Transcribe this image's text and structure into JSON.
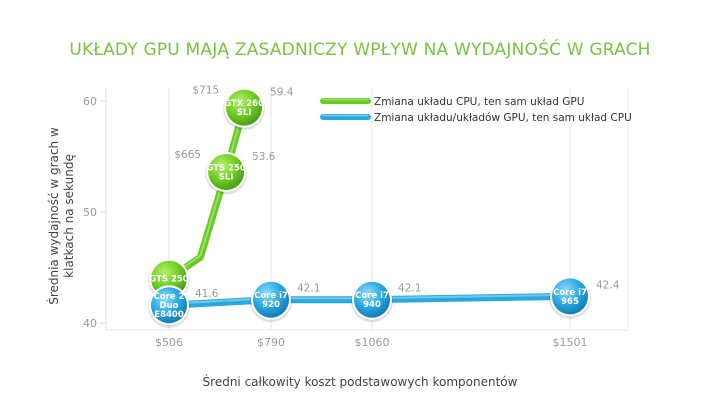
{
  "chart_data": {
    "type": "line",
    "title": "UKŁADY GPU MAJĄ ZASADNICZY WPŁYW NA WYDAJNOŚĆ W GRACH",
    "xlabel": "Średni całkowity koszt podstawowych komponentów",
    "ylabel": "Średnia wydajność w grach w klatkach na sekundę",
    "ylabel_lines": [
      "Średnia wydajność w grach w",
      "klatkach na sekundę"
    ],
    "y_ticks": [
      "60",
      "50",
      "40"
    ],
    "y_tick_values": [
      60,
      50,
      40
    ],
    "ylim": [
      40,
      60
    ],
    "x_ticks": [
      "$506",
      "$790",
      "$1060",
      "$1501"
    ],
    "x_tick_values": [
      506,
      790,
      1060,
      1501
    ],
    "legend_position": "top-right",
    "series": [
      {
        "name": "Zmiana układu CPU, ten sam układ GPU",
        "color": "#66cc22",
        "points": [
          {
            "x": 506,
            "y": 44.0,
            "node_label": [
              "GTS 250"
            ],
            "price_label": "",
            "value_label": ""
          },
          {
            "x": 665,
            "y": 53.6,
            "node_label": [
              "GTS 250",
              "SLI"
            ],
            "price_label": "$665",
            "value_label": "53.6"
          },
          {
            "x": 715,
            "y": 59.4,
            "node_label": [
              "GTX 260",
              "SLI"
            ],
            "price_label": "$715",
            "value_label": "59.4"
          }
        ]
      },
      {
        "name": "Zmiana układu/układów GPU, ten sam układ CPU",
        "color": "#29a8df",
        "points": [
          {
            "x": 506,
            "y": 41.6,
            "node_label": [
              "Core 2",
              "Duo",
              "E8400"
            ],
            "price_label": "",
            "value_label": "41.6"
          },
          {
            "x": 790,
            "y": 42.1,
            "node_label": [
              "Core i7",
              "920"
            ],
            "price_label": "",
            "value_label": "42.1"
          },
          {
            "x": 1060,
            "y": 42.1,
            "node_label": [
              "Core i7",
              "940"
            ],
            "price_label": "",
            "value_label": "42.1"
          },
          {
            "x": 1501,
            "y": 42.4,
            "node_label": [
              "Core i7",
              "965"
            ],
            "price_label": "",
            "value_label": "42.4"
          }
        ]
      }
    ]
  }
}
